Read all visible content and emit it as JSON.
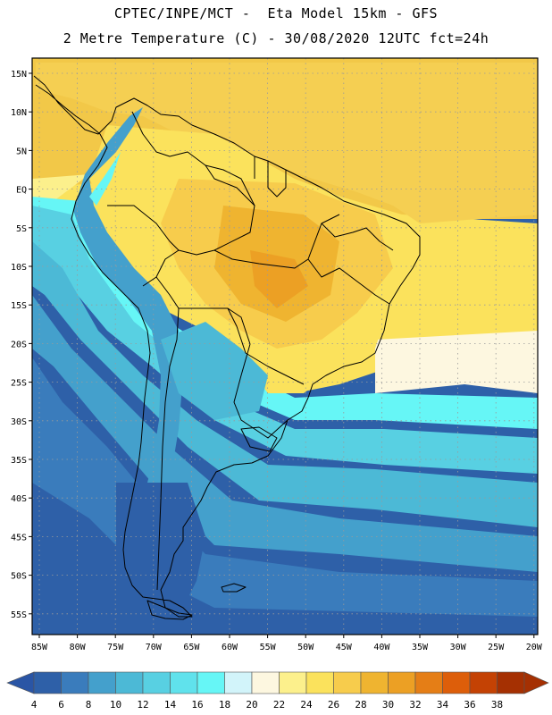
{
  "header": {
    "line1": "CPTEC/INPE/MCT -  Eta Model 15km - GFS",
    "line2": "2 Metre Temperature (C) - 30/08/2020 12UTC fct=24h"
  },
  "map": {
    "lat_ticks": [
      "15N",
      "10N",
      "5N",
      "EQ",
      "5S",
      "10S",
      "15S",
      "20S",
      "25S",
      "30S",
      "35S",
      "40S",
      "45S",
      "50S",
      "55S"
    ],
    "lon_ticks": [
      "85W",
      "80W",
      "75W",
      "70W",
      "65W",
      "60W",
      "55W",
      "50W",
      "45W",
      "40W",
      "35W",
      "30W",
      "25W",
      "20W"
    ]
  },
  "colorbar": {
    "labels": [
      "4",
      "6",
      "8",
      "10",
      "12",
      "14",
      "16",
      "18",
      "20",
      "22",
      "24",
      "26",
      "28",
      "30",
      "32",
      "34",
      "36",
      "38"
    ],
    "colors": [
      "#2e60a8",
      "#3a7cbc",
      "#44a0cc",
      "#4cb9d6",
      "#58d0e2",
      "#60e2ec",
      "#66f6f6",
      "#d2f4fa",
      "#fdf7e0",
      "#fcf08c",
      "#fbe25c",
      "#f7cc4c",
      "#efb430",
      "#eca024",
      "#e57e16",
      "#dd5e0a",
      "#c44204",
      "#a53002"
    ],
    "under_color": "#2a55a5",
    "over_color": "#a53002"
  }
}
